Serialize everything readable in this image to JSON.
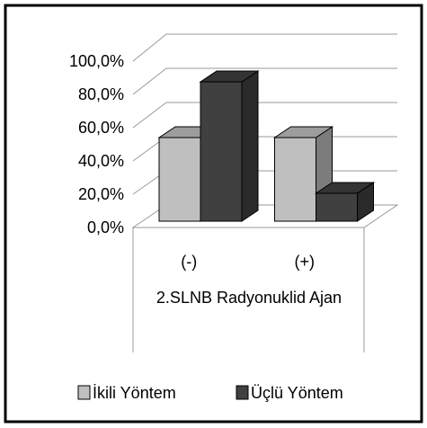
{
  "chart_data": {
    "type": "bar3d",
    "categories": [
      "(-)",
      "(+)"
    ],
    "group_label": "2.SLNB Radyonuklid Ajan",
    "series": [
      {
        "name": "İkili Yöntem",
        "color": "#bfbfbf",
        "values": [
          50,
          50
        ]
      },
      {
        "name": "Üçlü Yöntem",
        "color": "#404040",
        "values": [
          83.3,
          16.7
        ]
      }
    ],
    "ylim": [
      0,
      100
    ],
    "yticks": [
      {
        "value": 0,
        "label": "0,0%"
      },
      {
        "value": 20,
        "label": "20,0%"
      },
      {
        "value": 40,
        "label": "40,0%"
      },
      {
        "value": 60,
        "label": "60,0%"
      },
      {
        "value": 80,
        "label": "80,0%"
      },
      {
        "value": 100,
        "label": "100,0%"
      }
    ],
    "grid": true
  }
}
